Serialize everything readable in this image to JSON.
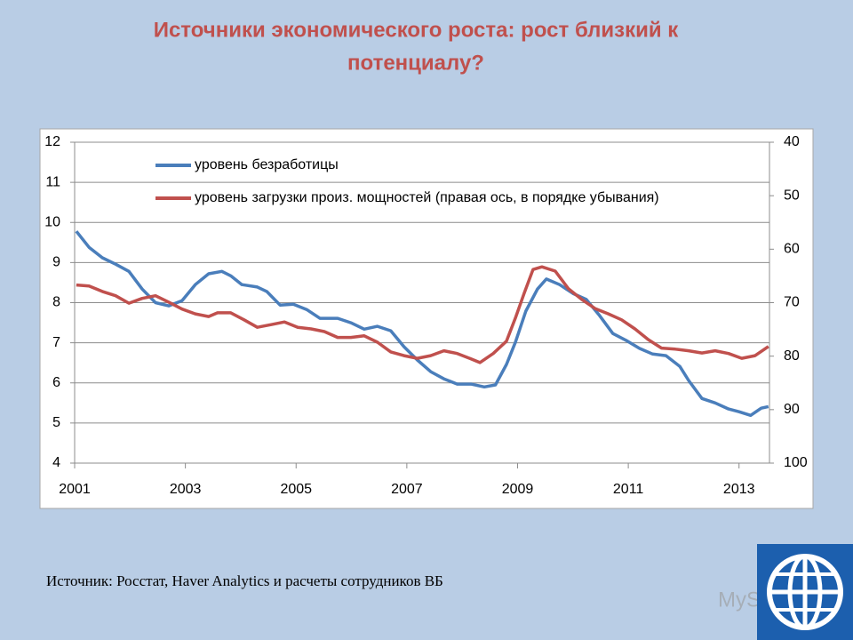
{
  "chart_data": {
    "type": "line",
    "title_lines": [
      "Источники экономического роста: рост близкий к",
      "потенциалу?"
    ],
    "source": "Источник: Росстат, Haver Analytics и расчеты сотрудников ВБ",
    "watermark": "MyShared",
    "xlim": [
      2001,
      2013.55
    ],
    "xticks": [
      2001,
      2003,
      2005,
      2007,
      2009,
      2011,
      2013
    ],
    "ylim": [
      4,
      12
    ],
    "yticks": [
      4,
      5,
      6,
      7,
      8,
      9,
      10,
      11,
      12
    ],
    "y2lim": [
      40,
      100
    ],
    "y2ticks": [
      40,
      50,
      60,
      70,
      80,
      90,
      100
    ],
    "y2_inverted": true,
    "grid": true,
    "legend": "top-left",
    "series": [
      {
        "name": "уровень безработицы",
        "color": "#4a7ebb",
        "x": [
          2001.03,
          2001.26,
          2001.5,
          2001.74,
          2001.98,
          2002.22,
          2002.46,
          2002.7,
          2002.94,
          2003.18,
          2003.42,
          2003.66,
          2003.82,
          2004.02,
          2004.3,
          2004.47,
          2004.71,
          2004.95,
          2005.19,
          2005.43,
          2005.75,
          2005.99,
          2006.23,
          2006.47,
          2006.71,
          2006.95,
          2007.19,
          2007.43,
          2007.67,
          2007.91,
          2008.16,
          2008.4,
          2008.6,
          2008.8,
          2008.96,
          2009.15,
          2009.36,
          2009.52,
          2009.76,
          2010.0,
          2010.24,
          2010.48,
          2010.72,
          2010.96,
          2011.2,
          2011.44,
          2011.68,
          2011.93,
          2012.09,
          2012.33,
          2012.57,
          2012.81,
          2013.0,
          2013.21,
          2013.4,
          2013.53
        ],
        "values": [
          9.78,
          9.38,
          9.12,
          8.96,
          8.78,
          8.34,
          8.0,
          7.92,
          8.05,
          8.45,
          8.72,
          8.78,
          8.67,
          8.45,
          8.39,
          8.28,
          7.94,
          7.96,
          7.83,
          7.61,
          7.61,
          7.5,
          7.34,
          7.41,
          7.3,
          6.9,
          6.57,
          6.28,
          6.1,
          5.97,
          5.97,
          5.9,
          5.95,
          6.46,
          7.01,
          7.79,
          8.34,
          8.59,
          8.45,
          8.23,
          8.08,
          7.68,
          7.23,
          7.06,
          6.86,
          6.72,
          6.68,
          6.41,
          6.06,
          5.61,
          5.5,
          5.35,
          5.28,
          5.19,
          5.37,
          5.41
        ]
      },
      {
        "name": "уровень загрузки произ. мощностей (правая ось, в порядке убывания)",
        "color": "#c0504d",
        "axis": "y2",
        "x": [
          2001.03,
          2001.26,
          2001.5,
          2001.74,
          2001.98,
          2002.22,
          2002.46,
          2002.7,
          2002.94,
          2003.18,
          2003.42,
          2003.58,
          2003.82,
          2004.06,
          2004.3,
          2004.55,
          2004.79,
          2005.03,
          2005.27,
          2005.51,
          2005.75,
          2005.99,
          2006.23,
          2006.47,
          2006.71,
          2006.95,
          2007.19,
          2007.43,
          2007.67,
          2007.91,
          2008.16,
          2008.32,
          2008.56,
          2008.8,
          2008.96,
          2009.12,
          2009.28,
          2009.44,
          2009.68,
          2009.92,
          2010.16,
          2010.4,
          2010.64,
          2010.88,
          2011.12,
          2011.36,
          2011.6,
          2011.85,
          2012.09,
          2012.33,
          2012.57,
          2012.81,
          2013.05,
          2013.29,
          2013.53
        ],
        "values": [
          66.7,
          66.9,
          67.9,
          68.7,
          70.1,
          69.2,
          68.7,
          69.9,
          71.2,
          72.1,
          72.6,
          71.9,
          71.9,
          73.2,
          74.6,
          74.1,
          73.6,
          74.6,
          74.9,
          75.4,
          76.5,
          76.5,
          76.2,
          77.4,
          79.2,
          79.9,
          80.4,
          79.9,
          79.0,
          79.5,
          80.5,
          81.2,
          79.5,
          77.2,
          72.9,
          68.2,
          63.8,
          63.3,
          64.1,
          67.4,
          69.4,
          71.1,
          72.1,
          73.2,
          74.9,
          76.9,
          78.5,
          78.7,
          79.0,
          79.4,
          79.0,
          79.5,
          80.4,
          79.9,
          78.2
        ]
      }
    ]
  }
}
